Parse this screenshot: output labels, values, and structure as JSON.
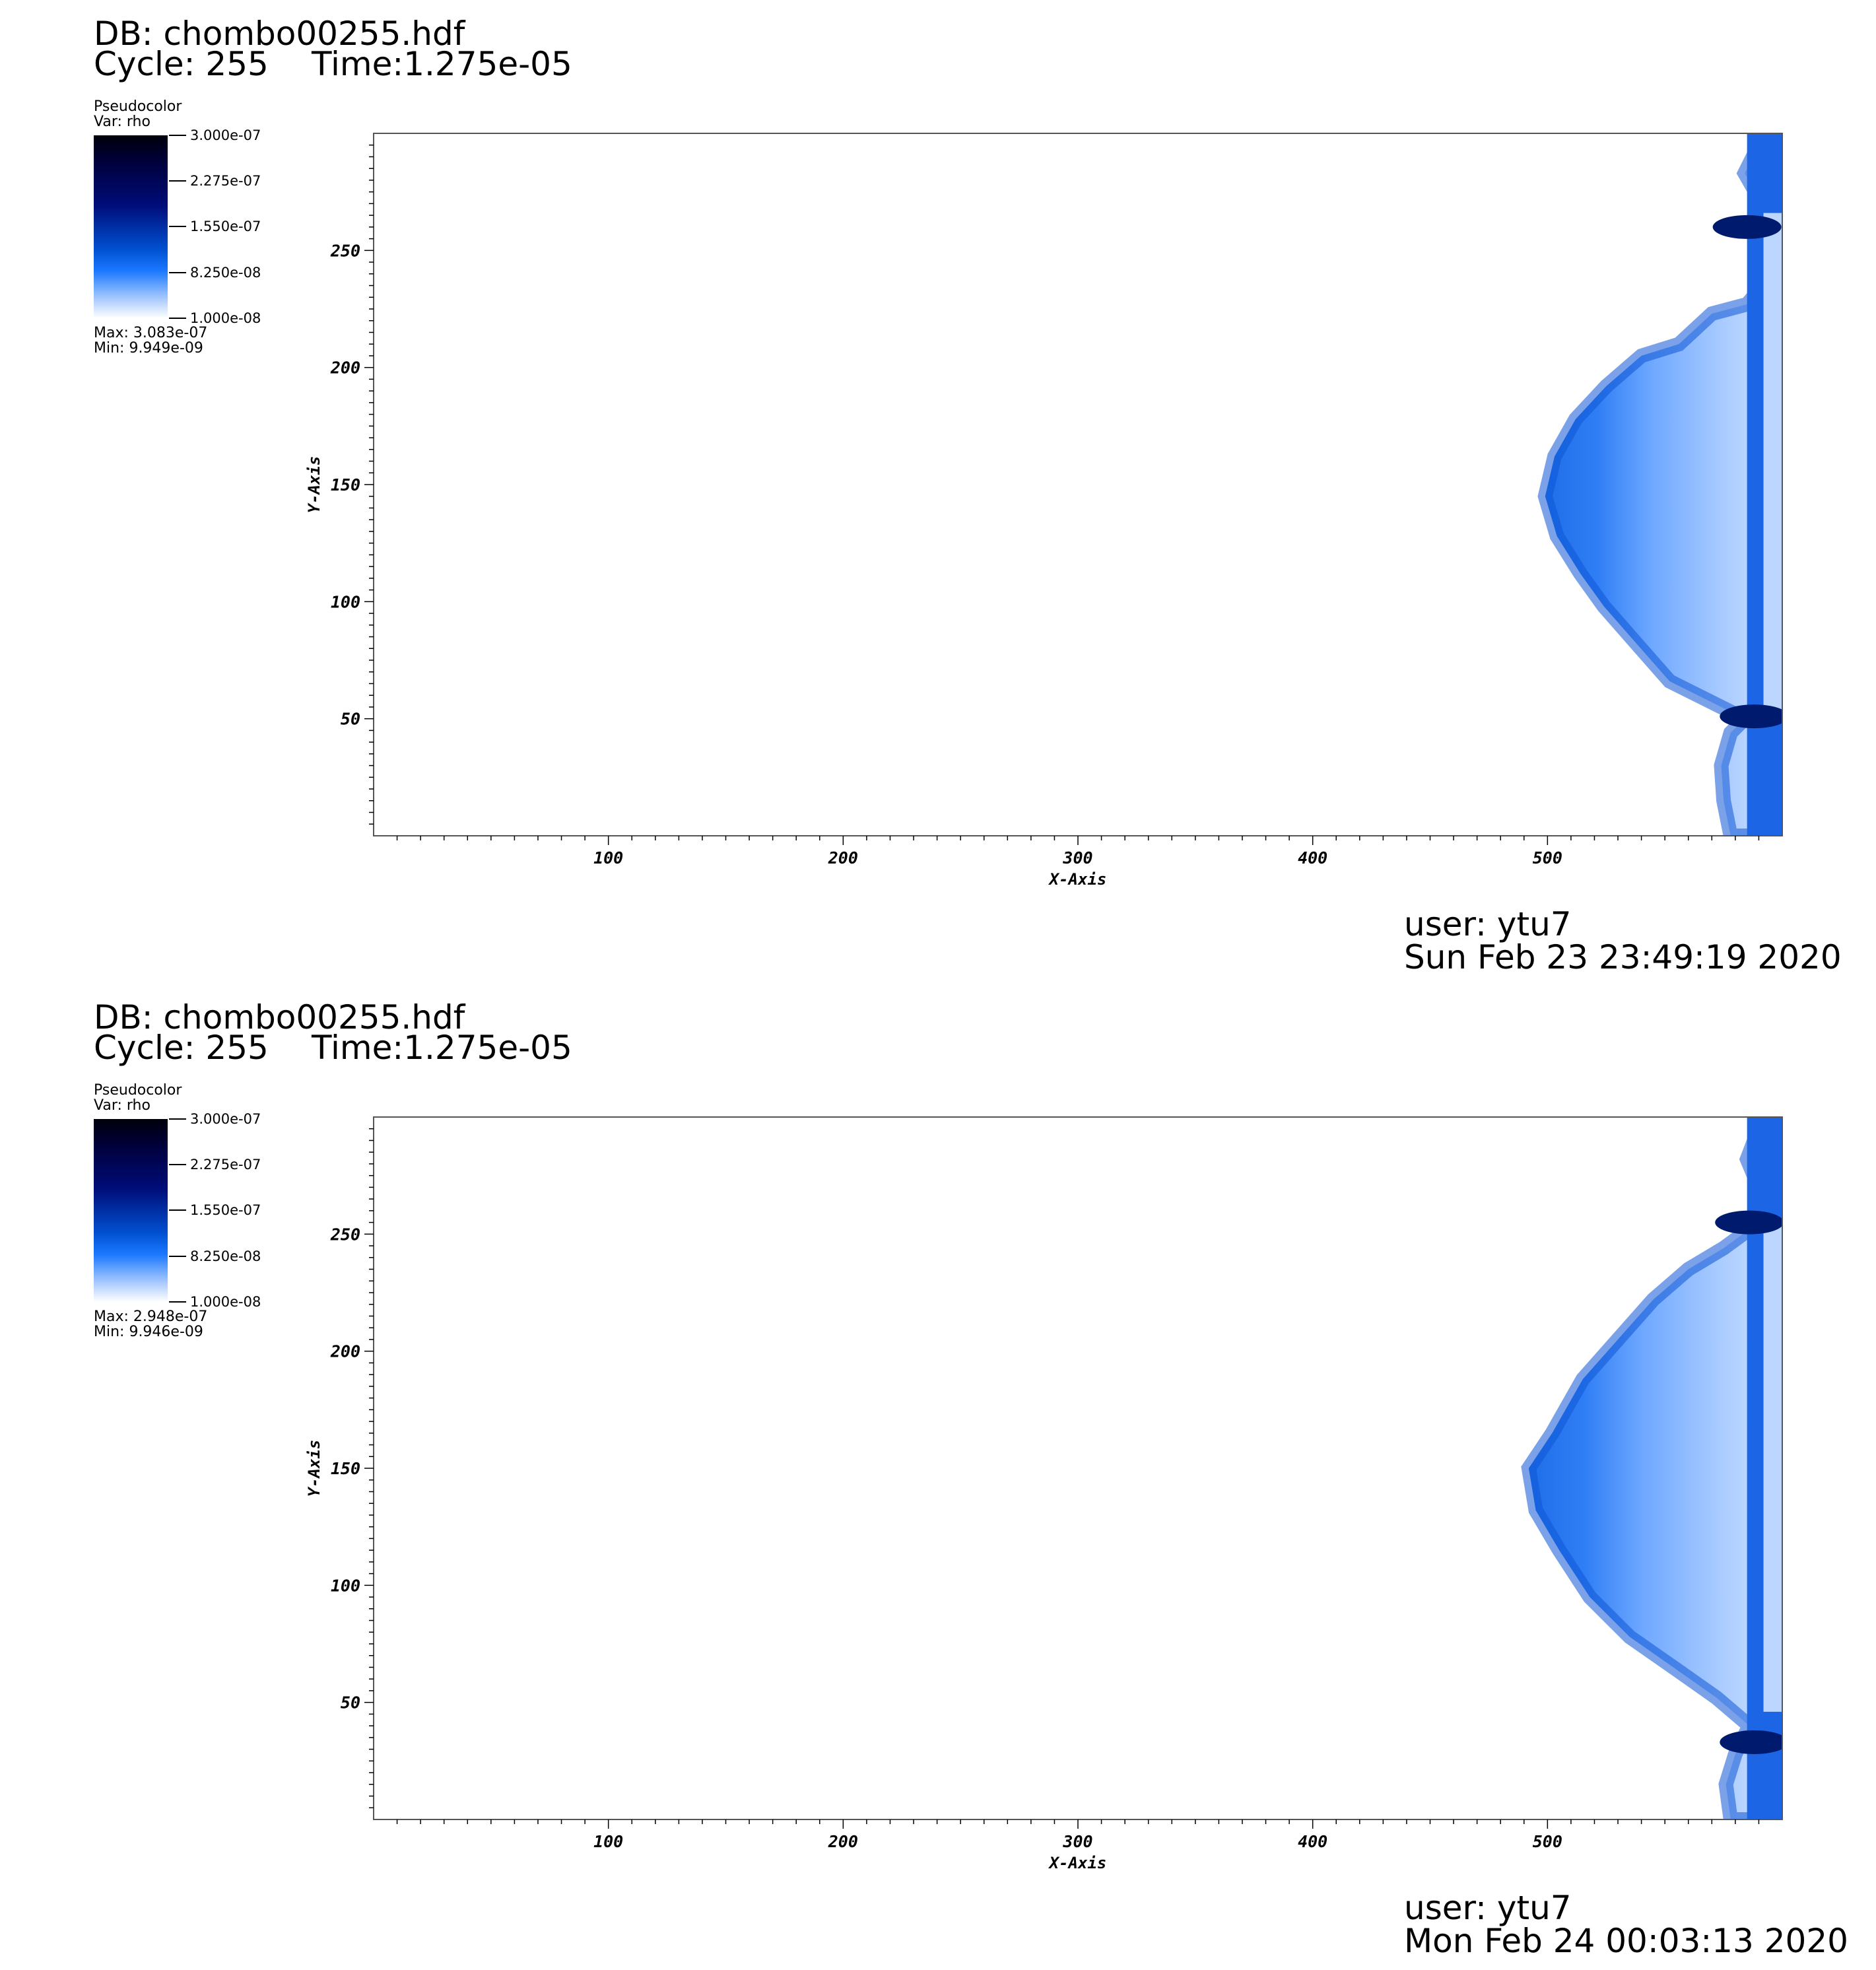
{
  "chart_data": [
    {
      "type": "heatmap",
      "plot_type": "Pseudocolor",
      "db_label": "DB: chombo00255.hdf",
      "cycle_label": "Cycle: 255",
      "time_label": "Time:1.275e-05",
      "legend": {
        "title": "Pseudocolor",
        "var": "Var: rho",
        "max": "Max:  3.083e-07",
        "min": "Min:  9.949e-09",
        "ticks": [
          "3.000e-07",
          "2.275e-07",
          "1.550e-07",
          "8.250e-08",
          "1.000e-08"
        ],
        "range": [
          1e-08,
          3e-07
        ]
      },
      "xlabel": "X-Axis",
      "ylabel": "Y-Axis",
      "xlim": [
        0,
        600
      ],
      "ylim": [
        0,
        300
      ],
      "xticks": [
        100,
        200,
        300,
        400,
        500
      ],
      "yticks": [
        50,
        100,
        150,
        200,
        250
      ],
      "user": "user: ytu7",
      "date": "Sun Feb 23 23:49:19 2020",
      "front": [
        [
          600,
          300
        ],
        [
          590,
          295
        ],
        [
          584,
          283
        ],
        [
          588,
          276
        ],
        [
          598,
          272
        ],
        [
          600,
          245
        ],
        [
          585,
          227
        ],
        [
          570,
          223
        ],
        [
          556,
          210
        ],
        [
          540,
          205
        ],
        [
          525,
          192
        ],
        [
          512,
          178
        ],
        [
          503,
          162
        ],
        [
          499,
          145
        ],
        [
          504,
          128
        ],
        [
          514,
          112
        ],
        [
          524,
          98
        ],
        [
          538,
          82
        ],
        [
          552,
          66
        ],
        [
          568,
          58
        ],
        [
          584,
          50
        ],
        [
          578,
          44
        ],
        [
          574,
          30
        ],
        [
          575,
          15
        ],
        [
          578,
          0
        ],
        [
          600,
          0
        ]
      ],
      "dark_bands": [
        [
          585,
          260
        ],
        [
          588,
          51
        ]
      ]
    },
    {
      "type": "heatmap",
      "plot_type": "Pseudocolor",
      "db_label": "DB: chombo00255.hdf",
      "cycle_label": "Cycle: 255",
      "time_label": "Time:1.275e-05",
      "legend": {
        "title": "Pseudocolor",
        "var": "Var: rho",
        "max": "Max:  2.948e-07",
        "min": "Min:  9.946e-09",
        "ticks": [
          "3.000e-07",
          "2.275e-07",
          "1.550e-07",
          "8.250e-08",
          "1.000e-08"
        ],
        "range": [
          1e-08,
          3e-07
        ]
      },
      "xlabel": "X-Axis",
      "ylabel": "Y-Axis",
      "xlim": [
        0,
        600
      ],
      "ylim": [
        0,
        300
      ],
      "xticks": [
        100,
        200,
        300,
        400,
        500
      ],
      "yticks": [
        50,
        100,
        150,
        200,
        250
      ],
      "user": "user: ytu7",
      "date": "Mon Feb 24 00:03:13 2020",
      "front": [
        [
          600,
          300
        ],
        [
          590,
          295
        ],
        [
          585,
          282
        ],
        [
          590,
          270
        ],
        [
          600,
          262
        ],
        [
          590,
          255
        ],
        [
          575,
          244
        ],
        [
          560,
          235
        ],
        [
          545,
          222
        ],
        [
          530,
          205
        ],
        [
          515,
          188
        ],
        [
          502,
          165
        ],
        [
          492,
          150
        ],
        [
          495,
          132
        ],
        [
          505,
          115
        ],
        [
          518,
          95
        ],
        [
          535,
          78
        ],
        [
          555,
          64
        ],
        [
          572,
          52
        ],
        [
          586,
          40
        ],
        [
          580,
          28
        ],
        [
          576,
          15
        ],
        [
          578,
          0
        ],
        [
          600,
          0
        ]
      ],
      "dark_bands": [
        [
          586,
          255
        ],
        [
          588,
          33
        ]
      ]
    }
  ]
}
